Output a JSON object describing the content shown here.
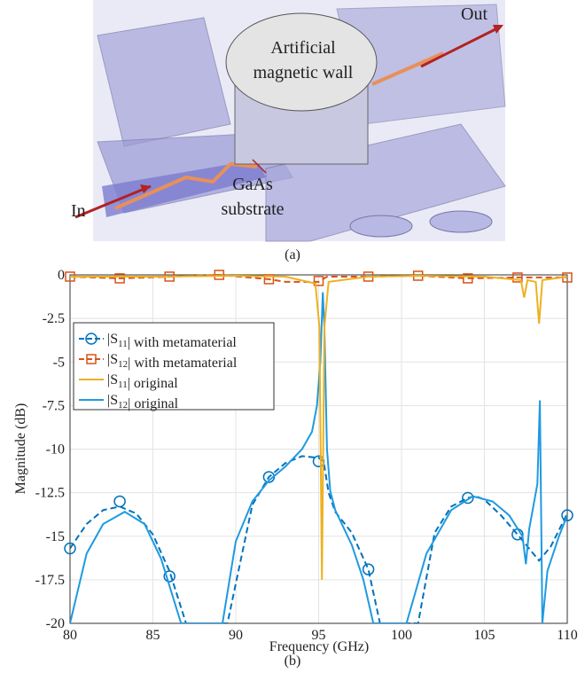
{
  "figure_a": {
    "labels": {
      "wall_1": "Artificial",
      "wall_2": "magnetic wall",
      "out": "Out",
      "in": "In",
      "gaas_1": "GaAs",
      "gaas_2": "substrate"
    },
    "caption": "(a)"
  },
  "chart_data": {
    "type": "line",
    "caption": "(b)",
    "x_label": "Frequency (GHz)",
    "y_label": "Magnitude (dB)",
    "xlim": [
      80,
      110
    ],
    "ylim": [
      -20,
      0
    ],
    "xticks": [
      80,
      85,
      90,
      95,
      100,
      105,
      110
    ],
    "yticks": [
      0,
      -2.5,
      -5,
      -7.5,
      -10,
      -12.5,
      -15,
      -17.5,
      -20
    ],
    "grid": true,
    "legend": "upper-left",
    "series": [
      {
        "name": "|S11| with metamaterial",
        "color": "#0072bd",
        "dash": true,
        "marker": "circle",
        "x": [
          80,
          81,
          82,
          83,
          84,
          85,
          86,
          87,
          89.5,
          91,
          92,
          93,
          94,
          95,
          95.3,
          95.6,
          96,
          97,
          98,
          98.7,
          101,
          102,
          103,
          104,
          104.5,
          105,
          106,
          107,
          108.3,
          109,
          110
        ],
        "values": [
          -15.7,
          -14.3,
          -13.5,
          -13.3,
          -13.7,
          -14.9,
          -17,
          -20,
          -20,
          -13.2,
          -11.6,
          -10.8,
          -10.4,
          -10.5,
          -10.7,
          -12.5,
          -13.6,
          -14.8,
          -16.9,
          -20,
          -20,
          -14.8,
          -13.3,
          -12.8,
          -12.7,
          -12.9,
          -13.8,
          -14.9,
          -16.4,
          -15.6,
          -13.7
        ],
        "markers": {
          "x": [
            80,
            83,
            86,
            92,
            95,
            98,
            104,
            107,
            110
          ],
          "values": [
            -15.7,
            -13,
            -17.3,
            -11.6,
            -10.7,
            -16.9,
            -12.8,
            -14.9,
            -13.8
          ]
        }
      },
      {
        "name": "|S12| with metamaterial",
        "color": "#d95319",
        "dash": true,
        "marker": "square",
        "x": [
          80,
          83,
          86,
          89,
          92,
          93,
          95,
          95.5,
          98,
          101,
          104,
          107,
          110
        ],
        "values": [
          -0.1,
          -0.2,
          -0.1,
          0,
          -0.25,
          -0.4,
          -0.4,
          -0.1,
          -0.1,
          -0.05,
          -0.2,
          -0.15,
          -0.15
        ],
        "markers": {
          "x": [
            80,
            83,
            86,
            89,
            92,
            95,
            98,
            101,
            104,
            107,
            110
          ],
          "values": [
            -0.1,
            -0.2,
            -0.1,
            0,
            -0.25,
            -0.35,
            -0.1,
            -0.05,
            -0.2,
            -0.15,
            -0.15
          ]
        }
      },
      {
        "name": "|S11| original",
        "color": "#edb120",
        "dash": false,
        "x": [
          80,
          85,
          90,
          93,
          94.8,
          95.05,
          95.2,
          95.35,
          95.6,
          98,
          101,
          105,
          107.2,
          107.4,
          107.6,
          108.1,
          108.3,
          108.5,
          110
        ],
        "values": [
          -0.1,
          -0.1,
          -0.05,
          -0.1,
          -0.5,
          -3,
          -17.5,
          -3,
          -0.4,
          -0.1,
          -0.05,
          -0.1,
          -0.3,
          -1.3,
          -0.3,
          -0.4,
          -2.8,
          -0.3,
          -0.1
        ]
      },
      {
        "name": "|S12| original",
        "color": "#1f9ae0",
        "dash": false,
        "x": [
          80,
          81,
          82,
          83.3,
          84.5,
          85.5,
          86.7,
          89.2,
          90,
          91,
          92,
          93,
          94,
          94.6,
          94.9,
          95.1,
          95.25,
          95.35,
          95.5,
          95.7,
          96,
          97,
          97.7,
          98.3,
          100.3,
          101.5,
          103,
          104.3,
          105.5,
          106.5,
          107.3,
          107.5,
          107.7,
          108.2,
          108.35,
          108.5,
          108.8,
          109.5,
          110
        ],
        "values": [
          -20,
          -16,
          -14.3,
          -13.6,
          -14.3,
          -16.3,
          -20,
          -20,
          -15.3,
          -13,
          -11.8,
          -11,
          -10,
          -9,
          -7.5,
          -5,
          -1,
          -3,
          -10,
          -12.4,
          -13.5,
          -15.5,
          -17.5,
          -20,
          -20,
          -16,
          -13.5,
          -12.7,
          -13,
          -13.8,
          -15,
          -16.6,
          -14.6,
          -12,
          -7.2,
          -20,
          -17,
          -15,
          -13.8
        ]
      }
    ]
  }
}
